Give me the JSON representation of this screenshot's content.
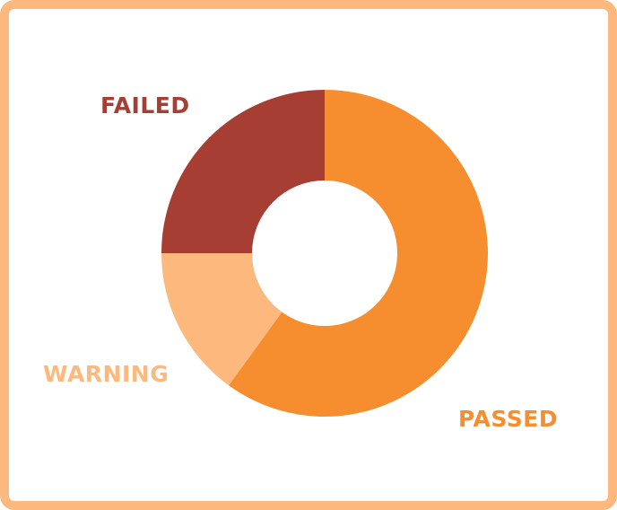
{
  "chart_data": {
    "type": "pie",
    "donut": true,
    "title": "",
    "categories": [
      "PASSED",
      "WARNING",
      "FAILED"
    ],
    "values": [
      60,
      15,
      25
    ],
    "colors": [
      "#F68D2E",
      "#FDB97D",
      "#A63E34"
    ],
    "legend": "none"
  },
  "labels": {
    "failed": "FAILED",
    "warning": "WARNING",
    "passed": "PASSED"
  }
}
